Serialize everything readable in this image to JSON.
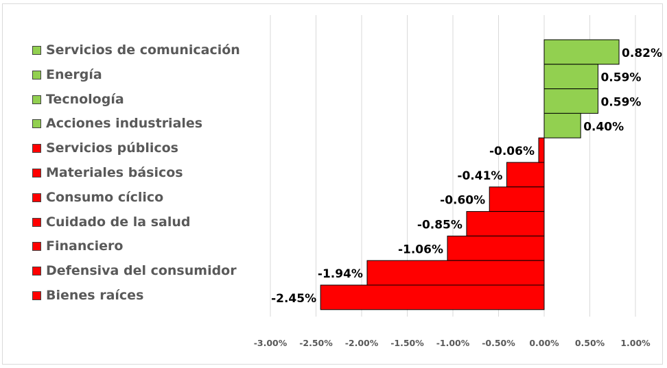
{
  "chart_data": {
    "type": "bar",
    "orientation": "horizontal",
    "categories": [
      "Servicios de comunicación",
      "Energía",
      "Tecnología",
      "Acciones industriales",
      "Servicios públicos",
      "Materiales básicos",
      "Consumo cíclico",
      "Cuidado de la salud",
      "Financiero",
      "Defensiva del consumidor",
      "Bienes raíces"
    ],
    "values": [
      0.82,
      0.59,
      0.59,
      0.4,
      -0.06,
      -0.41,
      -0.6,
      -0.85,
      -1.06,
      -1.94,
      -2.45
    ],
    "data_labels": [
      "0.82%",
      "0.59%",
      "0.59%",
      "0.40%",
      "-0.06%",
      "-0.41%",
      "-0.60%",
      "-0.85%",
      "-1.06%",
      "-1.94%",
      "-2.45%"
    ],
    "xlim": [
      -3.0,
      1.0
    ],
    "x_ticks": [
      -3.0,
      -2.5,
      -2.0,
      -1.5,
      -1.0,
      -0.5,
      0.0,
      0.5,
      1.0
    ],
    "x_tick_labels": [
      "-3.00%",
      "-2.50%",
      "-2.00%",
      "-1.50%",
      "-1.00%",
      "-0.50%",
      "0.00%",
      "0.50%",
      "1.00%"
    ],
    "gridlines": "vertical",
    "legend_placement": "left",
    "colors": {
      "positive": "#92d050",
      "negative": "#ff0000",
      "bar_border": "#000000",
      "gridline": "#d9d9d9",
      "tick_label": "#595959",
      "legend_label": "#595959",
      "data_label": "#000000"
    },
    "title": "",
    "xlabel": "",
    "ylabel": ""
  }
}
